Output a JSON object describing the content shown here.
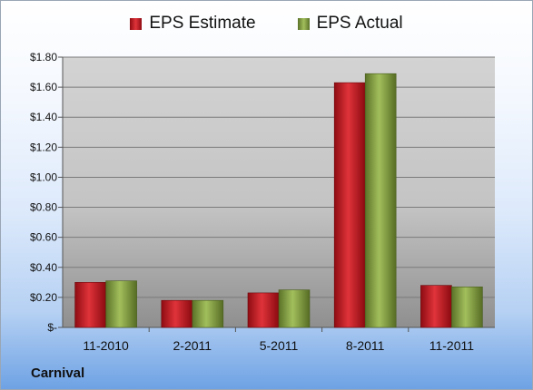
{
  "chart_data": {
    "type": "bar",
    "categories": [
      "11-2010",
      "2-2011",
      "5-2011",
      "8-2011",
      "11-2011"
    ],
    "series": [
      {
        "name": "EPS Estimate",
        "values": [
          0.3,
          0.18,
          0.23,
          1.63,
          0.28
        ],
        "color": "#c0141c"
      },
      {
        "name": "EPS Actual",
        "values": [
          0.31,
          0.18,
          0.25,
          1.69,
          0.27
        ],
        "color": "#7c9a3c"
      }
    ],
    "yticks": [
      "$-",
      "$0.20",
      "$0.40",
      "$0.60",
      "$0.80",
      "$1.00",
      "$1.20",
      "$1.40",
      "$1.60",
      "$1.80"
    ],
    "ylim": [
      0,
      1.8
    ],
    "grid": true,
    "legend_position": "top-center"
  },
  "company": "Carnival"
}
